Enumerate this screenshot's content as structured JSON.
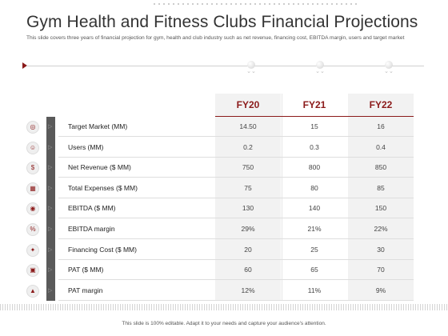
{
  "slide": {
    "title": "Gym Health and Fitness Clubs Financial Projections",
    "subtitle": "This slide covers three years of financial projection for gym, health and club industry such as net revenue, financing cost, EBITDA margin, users and target market",
    "footer": "This slide is 100% editable. Adapt it to your needs and capture your audience's attention."
  },
  "table": {
    "headers": [
      "FY20",
      "FY21",
      "FY22"
    ],
    "rows": [
      {
        "label": "Target Market (MM)",
        "icon": "target-icon",
        "glyph": "◎",
        "values": [
          "14.50",
          "15",
          "16"
        ]
      },
      {
        "label": "Users (MM)",
        "icon": "users-icon",
        "glyph": "☺",
        "values": [
          "0.2",
          "0.3",
          "0.4"
        ]
      },
      {
        "label": "Net Revenue ($ MM)",
        "icon": "revenue-icon",
        "glyph": "$",
        "values": [
          "750",
          "800",
          "850"
        ]
      },
      {
        "label": "Total Expenses ($ MM)",
        "icon": "expenses-icon",
        "glyph": "▦",
        "values": [
          "75",
          "80",
          "85"
        ]
      },
      {
        "label": "EBITDA ($ MM)",
        "icon": "ebitda-icon",
        "glyph": "◉",
        "values": [
          "130",
          "140",
          "150"
        ]
      },
      {
        "label": "EBITDA margin",
        "icon": "margin-icon",
        "glyph": "%",
        "values": [
          "29%",
          "21%",
          "22%"
        ]
      },
      {
        "label": "Financing Cost ($ MM)",
        "icon": "financing-icon",
        "glyph": "✦",
        "values": [
          "20",
          "25",
          "30"
        ]
      },
      {
        "label": "PAT ($ MM)",
        "icon": "pat-icon",
        "glyph": "▣",
        "values": [
          "60",
          "65",
          "70"
        ]
      },
      {
        "label": "PAT margin",
        "icon": "chart-icon",
        "glyph": "▲",
        "values": [
          "12%",
          "11%",
          "9%"
        ]
      }
    ]
  },
  "colors": {
    "accent": "#8b1a1a",
    "leftbar": "#5a5a5a",
    "column_shade": "#f2f2f2"
  }
}
